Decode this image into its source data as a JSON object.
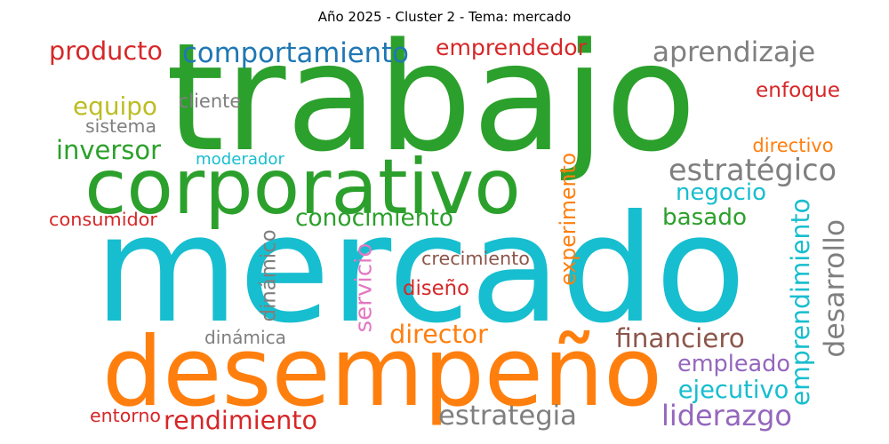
{
  "title": "Año 2025 - Cluster 2 - Tema: mercado",
  "words": [
    {
      "text": "mercado",
      "color": "#17becf"
    },
    {
      "text": "trabajo",
      "color": "#2ca02c"
    },
    {
      "text": "desempeño",
      "color": "#ff7f0e"
    },
    {
      "text": "corporativo",
      "color": "#2ca02c"
    },
    {
      "text": "comportamiento",
      "color": "#1f77b4"
    },
    {
      "text": "producto",
      "color": "#d62728"
    },
    {
      "text": "emprendedor",
      "color": "#d62728"
    },
    {
      "text": "aprendizaje",
      "color": "#7f7f7f"
    },
    {
      "text": "enfoque",
      "color": "#d62728"
    },
    {
      "text": "equipo",
      "color": "#bcbd22"
    },
    {
      "text": "cliente",
      "color": "#7f7f7f"
    },
    {
      "text": "sistema",
      "color": "#7f7f7f"
    },
    {
      "text": "inversor",
      "color": "#2ca02c"
    },
    {
      "text": "moderador",
      "color": "#17becf"
    },
    {
      "text": "directivo",
      "color": "#ff7f0e"
    },
    {
      "text": "estratégico",
      "color": "#7f7f7f"
    },
    {
      "text": "negocio",
      "color": "#17becf"
    },
    {
      "text": "consumidor",
      "color": "#d62728"
    },
    {
      "text": "conocimiento",
      "color": "#2ca02c"
    },
    {
      "text": "basado",
      "color": "#2ca02c"
    },
    {
      "text": "crecimiento",
      "color": "#8c564b"
    },
    {
      "text": "diseño",
      "color": "#d62728"
    },
    {
      "text": "director",
      "color": "#ff7f0e"
    },
    {
      "text": "financiero",
      "color": "#8c564b"
    },
    {
      "text": "empleado",
      "color": "#9467bd"
    },
    {
      "text": "ejecutivo",
      "color": "#17becf"
    },
    {
      "text": "dinámica",
      "color": "#7f7f7f"
    },
    {
      "text": "entorno",
      "color": "#d62728"
    },
    {
      "text": "rendimiento",
      "color": "#d62728"
    },
    {
      "text": "estrategia",
      "color": "#7f7f7f"
    },
    {
      "text": "liderazgo",
      "color": "#9467bd"
    },
    {
      "text": "dinámico",
      "color": "#7f7f7f"
    },
    {
      "text": "servicio",
      "color": "#e377c2"
    },
    {
      "text": "experimento",
      "color": "#ff7f0e"
    },
    {
      "text": "emprendimiento",
      "color": "#17becf"
    },
    {
      "text": "desarrollo",
      "color": "#7f7f7f"
    }
  ]
}
